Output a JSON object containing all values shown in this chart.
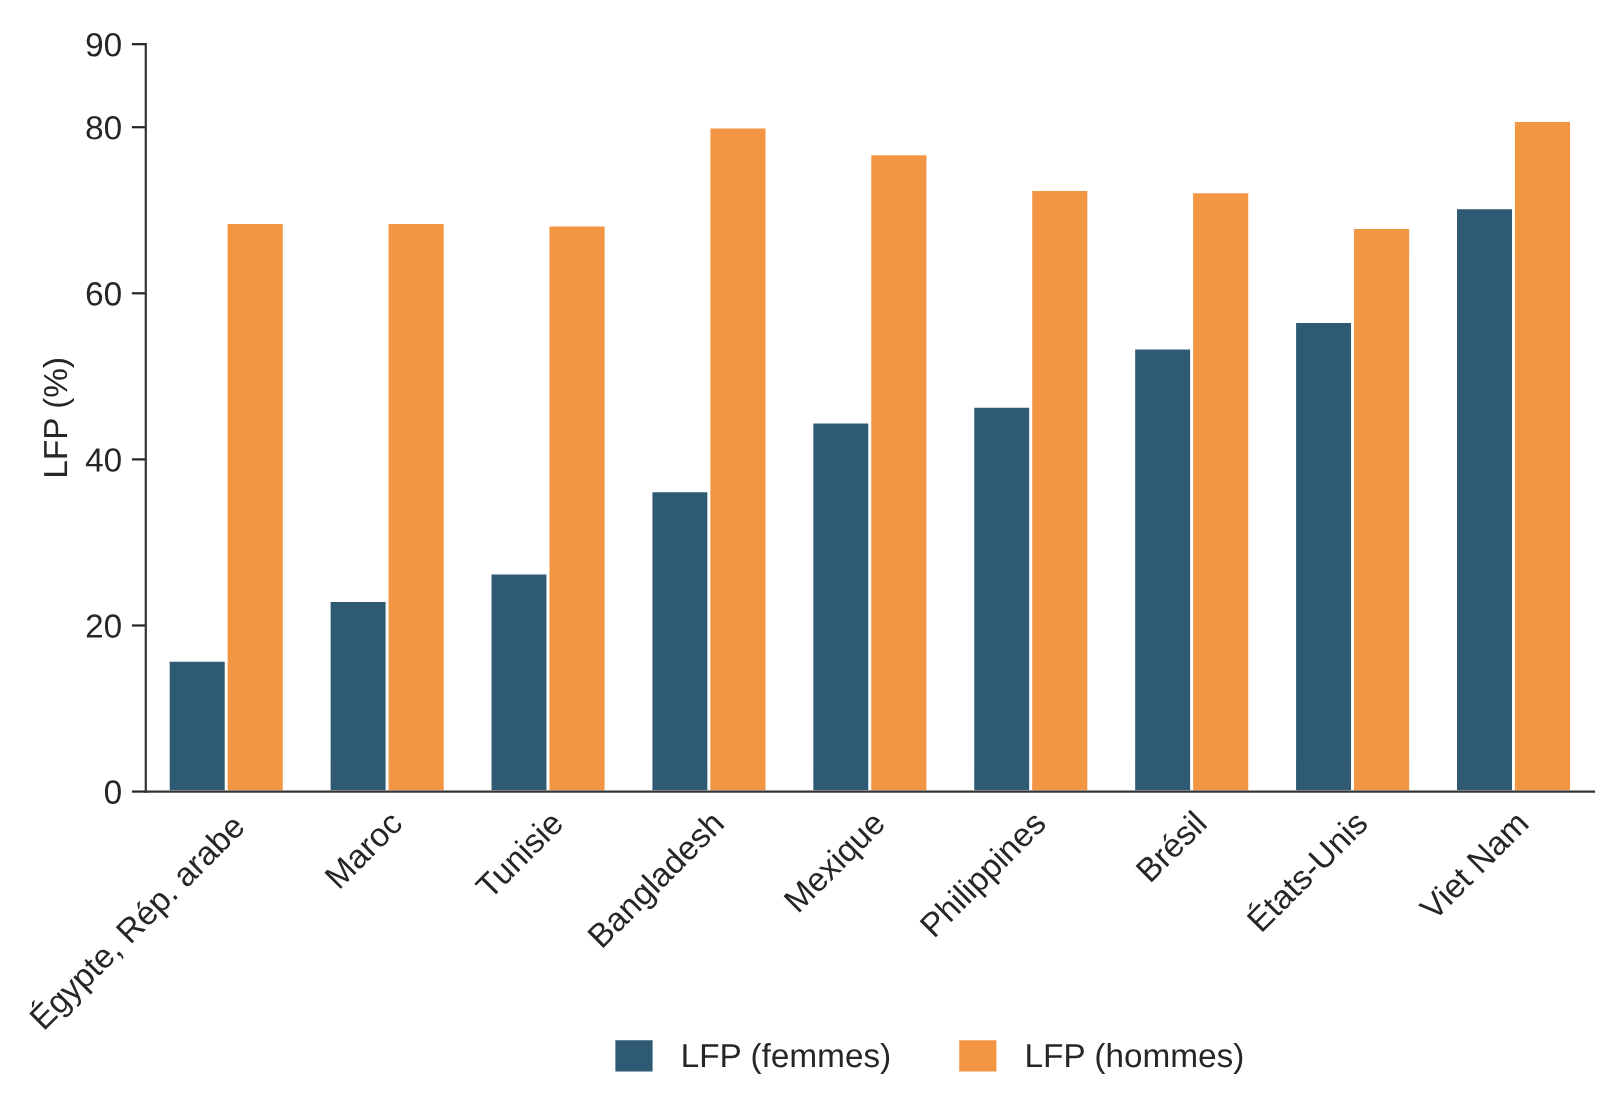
{
  "chart_data": {
    "type": "bar",
    "ylabel": "LFP (%)",
    "categories": [
      "Égypte, Rép. arabe",
      "Maroc",
      "Tunisie",
      "Bangladesh",
      "Mexique",
      "Philippines",
      "Brésil",
      "États-Unis",
      "Viet Nam"
    ],
    "series": [
      {
        "name": "LFP (femmes)",
        "color": "#2e5a74",
        "values": [
          15.8,
          23.0,
          26.3,
          36.2,
          44.5,
          46.4,
          53.4,
          56.6,
          70.3
        ]
      },
      {
        "name": "LFP (hommes)",
        "color": "#f39644",
        "values": [
          68.5,
          68.5,
          68.2,
          80.0,
          76.8,
          72.5,
          72.2,
          67.9,
          80.8
        ]
      }
    ],
    "ylim": [
      0,
      90
    ],
    "yticks": [
      0,
      20,
      40,
      60,
      80,
      90
    ],
    "grid": false,
    "legend": "bottom"
  }
}
